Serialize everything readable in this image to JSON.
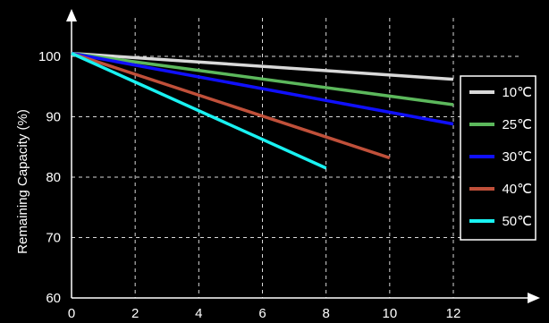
{
  "chart_data": {
    "type": "line",
    "ylabel": "Remaining Capacity (%)",
    "xlabel": "",
    "xlim": [
      0,
      12
    ],
    "ylim": [
      60,
      100
    ],
    "xticks": [
      "0",
      "2",
      "4",
      "6",
      "8",
      "10",
      "12"
    ],
    "yticks": [
      "60",
      "70",
      "80",
      "90",
      "100"
    ],
    "grid": true,
    "legend_position": "right",
    "series": [
      {
        "name": "10℃",
        "color": "#d9d9d9",
        "x": [
          0,
          12
        ],
        "y": [
          100.5,
          96.2
        ]
      },
      {
        "name": "25℃",
        "color": "#5cb85c",
        "x": [
          0,
          12
        ],
        "y": [
          100.5,
          92.0
        ]
      },
      {
        "name": "30℃",
        "color": "#1010ff",
        "x": [
          0,
          12
        ],
        "y": [
          100.5,
          88.8
        ]
      },
      {
        "name": "40℃",
        "color": "#c0503a",
        "x": [
          0,
          10
        ],
        "y": [
          100.5,
          83.2
        ]
      },
      {
        "name": "50℃",
        "color": "#19f2f2",
        "x": [
          0,
          8
        ],
        "y": [
          100.5,
          81.5
        ]
      }
    ]
  }
}
